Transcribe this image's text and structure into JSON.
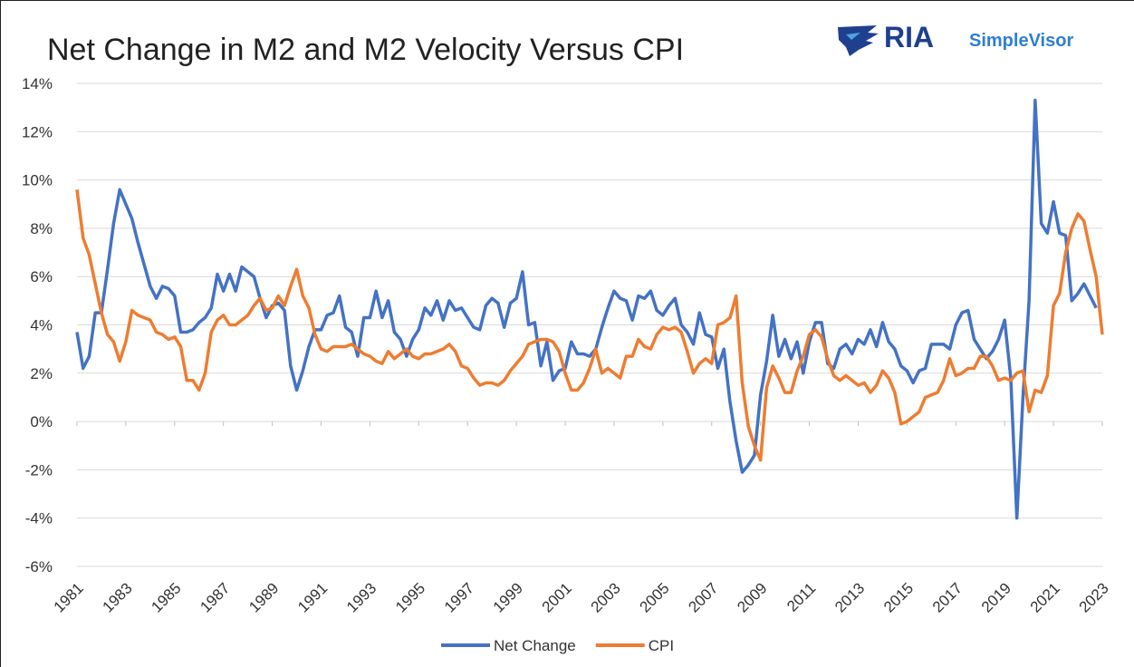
{
  "chart_data": {
    "type": "line",
    "title": "Net Change in M2 and M2 Velocity Versus CPI",
    "logo": [
      "RIA",
      "SimpleVisor"
    ],
    "x": [
      1981,
      1981.25,
      1981.5,
      1981.75,
      1982,
      1982.25,
      1982.5,
      1982.75,
      1983,
      1983.25,
      1983.5,
      1983.75,
      1984,
      1984.25,
      1984.5,
      1984.75,
      1985,
      1985.25,
      1985.5,
      1985.75,
      1986,
      1986.25,
      1986.5,
      1986.75,
      1987,
      1987.25,
      1987.5,
      1987.75,
      1988,
      1988.25,
      1988.5,
      1988.75,
      1989,
      1989.25,
      1989.5,
      1989.75,
      1990,
      1990.25,
      1990.5,
      1990.75,
      1991,
      1991.25,
      1991.5,
      1991.75,
      1992,
      1992.25,
      1992.5,
      1992.75,
      1993,
      1993.25,
      1993.5,
      1993.75,
      1994,
      1994.25,
      1994.5,
      1994.75,
      1995,
      1995.25,
      1995.5,
      1995.75,
      1996,
      1996.25,
      1996.5,
      1996.75,
      1997,
      1997.25,
      1997.5,
      1997.75,
      1998,
      1998.25,
      1998.5,
      1998.75,
      1999,
      1999.25,
      1999.5,
      1999.75,
      2000,
      2000.25,
      2000.5,
      2000.75,
      2001,
      2001.25,
      2001.5,
      2001.75,
      2002,
      2002.25,
      2002.5,
      2002.75,
      2003,
      2003.25,
      2003.5,
      2003.75,
      2004,
      2004.25,
      2004.5,
      2004.75,
      2005,
      2005.25,
      2005.5,
      2005.75,
      2006,
      2006.25,
      2006.5,
      2006.75,
      2007,
      2007.25,
      2007.5,
      2007.75,
      2008,
      2008.25,
      2008.5,
      2008.75,
      2009,
      2009.25,
      2009.5,
      2009.75,
      2010,
      2010.25,
      2010.5,
      2010.75,
      2011,
      2011.25,
      2011.5,
      2011.75,
      2012,
      2012.25,
      2012.5,
      2012.75,
      2013,
      2013.25,
      2013.5,
      2013.75,
      2014,
      2014.25,
      2014.5,
      2014.75,
      2015,
      2015.25,
      2015.5,
      2015.75,
      2016,
      2016.25,
      2016.5,
      2016.75,
      2017,
      2017.25,
      2017.5,
      2017.75,
      2018,
      2018.25,
      2018.5,
      2018.75,
      2019,
      2019.25,
      2019.5,
      2019.75,
      2020,
      2020.25,
      2020.5,
      2020.75,
      2021,
      2021.25,
      2021.5,
      2021.75,
      2022,
      2022.25,
      2022.5,
      2022.75,
      2023
    ],
    "series": [
      {
        "name": "Net Change",
        "color": "#4472c4",
        "values": [
          3.7,
          2.2,
          2.7,
          4.5,
          4.5,
          6.3,
          8.2,
          9.6,
          9.0,
          8.4,
          7.4,
          6.5,
          5.6,
          5.1,
          5.6,
          5.5,
          5.2,
          3.7,
          3.7,
          3.8,
          4.1,
          4.3,
          4.7,
          6.1,
          5.4,
          6.1,
          5.4,
          6.4,
          6.2,
          6.0,
          5.1,
          4.3,
          4.8,
          4.9,
          4.6,
          2.3,
          1.3,
          2.1,
          3.1,
          3.8,
          3.8,
          4.4,
          4.5,
          5.2,
          3.9,
          3.7,
          2.7,
          4.3,
          4.3,
          5.4,
          4.3,
          5.0,
          3.7,
          3.4,
          2.7,
          3.4,
          3.8,
          4.7,
          4.4,
          5.0,
          4.2,
          5.0,
          4.6,
          4.7,
          4.3,
          3.9,
          3.8,
          4.8,
          5.1,
          4.9,
          3.9,
          4.9,
          5.1,
          6.2,
          4.0,
          4.1,
          2.3,
          3.3,
          1.7,
          2.1,
          2.2,
          3.3,
          2.8,
          2.8,
          2.7,
          3.0,
          3.9,
          4.7,
          5.4,
          5.1,
          5.0,
          4.2,
          5.2,
          5.1,
          5.4,
          4.6,
          4.4,
          4.8,
          5.1,
          4.0,
          3.7,
          3.2,
          4.5,
          3.6,
          3.5,
          2.2,
          3.0,
          0.8,
          -0.8,
          -2.1,
          -1.8,
          -1.4,
          1.1,
          2.5,
          4.4,
          2.7,
          3.4,
          2.6,
          3.3,
          2.0,
          3.3,
          4.1,
          4.1,
          2.4,
          2.2,
          3.0,
          3.2,
          2.8,
          3.4,
          3.2,
          3.8,
          3.1,
          4.1,
          3.3,
          3.0,
          2.3,
          2.1,
          1.6,
          2.1,
          2.2,
          3.2,
          3.2,
          3.2,
          3.0,
          4.0,
          4.5,
          4.6,
          3.4,
          3.0,
          2.6,
          2.9,
          3.4,
          4.2,
          1.8,
          -4.0,
          1.0,
          5.0,
          13.3,
          8.2,
          7.8,
          9.1,
          7.8,
          7.7,
          5.0,
          5.3,
          5.7,
          5.2,
          4.7,
          null
        ]
      },
      {
        "name": "CPI",
        "color": "#ed7d31",
        "values": [
          9.6,
          7.6,
          6.9,
          5.7,
          4.5,
          3.6,
          3.3,
          2.5,
          3.3,
          4.6,
          4.4,
          4.3,
          4.2,
          3.7,
          3.6,
          3.4,
          3.5,
          3.1,
          1.7,
          1.7,
          1.3,
          2.0,
          3.7,
          4.2,
          4.4,
          4.0,
          4.0,
          4.2,
          4.4,
          4.8,
          5.1,
          4.6,
          4.7,
          5.2,
          4.8,
          5.6,
          6.3,
          5.2,
          4.7,
          3.6,
          3.0,
          2.9,
          3.1,
          3.1,
          3.1,
          3.2,
          3.0,
          2.8,
          2.7,
          2.5,
          2.4,
          2.9,
          2.6,
          2.8,
          3.0,
          2.7,
          2.6,
          2.8,
          2.8,
          2.9,
          3.0,
          3.2,
          2.9,
          2.3,
          2.2,
          1.8,
          1.5,
          1.6,
          1.6,
          1.5,
          1.7,
          2.1,
          2.4,
          2.7,
          3.2,
          3.3,
          3.4,
          3.4,
          3.3,
          2.9,
          2.0,
          1.3,
          1.3,
          1.6,
          2.2,
          3.0,
          2.0,
          2.2,
          2.0,
          1.8,
          2.7,
          2.7,
          3.4,
          3.1,
          3.0,
          3.6,
          3.9,
          3.8,
          3.9,
          3.7,
          2.9,
          2.0,
          2.4,
          2.6,
          2.4,
          4.0,
          4.1,
          4.3,
          5.2,
          1.6,
          -0.2,
          -1.0,
          -1.6,
          1.4,
          2.3,
          1.8,
          1.2,
          1.2,
          2.1,
          2.7,
          3.6,
          3.8,
          3.5,
          2.6,
          1.9,
          1.7,
          1.9,
          1.7,
          1.5,
          1.6,
          1.2,
          1.5,
          2.1,
          1.8,
          1.2,
          -0.1,
          0.0,
          0.2,
          0.4,
          1.0,
          1.1,
          1.2,
          1.7,
          2.6,
          1.9,
          2.0,
          2.2,
          2.2,
          2.7,
          2.7,
          2.3,
          1.7,
          1.8,
          1.7,
          2.0,
          2.1,
          0.4,
          1.3,
          1.2,
          1.9,
          4.8,
          5.3,
          7.0,
          8.0,
          8.6,
          8.3,
          7.1,
          6.0,
          3.6
        ]
      }
    ],
    "xlim": [
      1981,
      2023
    ],
    "xticks": [
      1981,
      1983,
      1985,
      1987,
      1989,
      1991,
      1993,
      1995,
      1997,
      1999,
      2001,
      2003,
      2005,
      2007,
      2009,
      2011,
      2013,
      2015,
      2017,
      2019,
      2021,
      2023
    ],
    "ylim": [
      -6,
      14
    ],
    "yticks": [
      {
        "value": -6,
        "label": "-6%"
      },
      {
        "value": -4,
        "label": "-4%"
      },
      {
        "value": -2,
        "label": "-2%"
      },
      {
        "value": 0,
        "label": "0%"
      },
      {
        "value": 2,
        "label": "2%"
      },
      {
        "value": 4,
        "label": "4%"
      },
      {
        "value": 6,
        "label": "6%"
      },
      {
        "value": 8,
        "label": "8%"
      },
      {
        "value": 10,
        "label": "10%"
      },
      {
        "value": 12,
        "label": "12%"
      },
      {
        "value": 14,
        "label": "14%"
      }
    ],
    "grid": true,
    "legend": "bottom"
  }
}
